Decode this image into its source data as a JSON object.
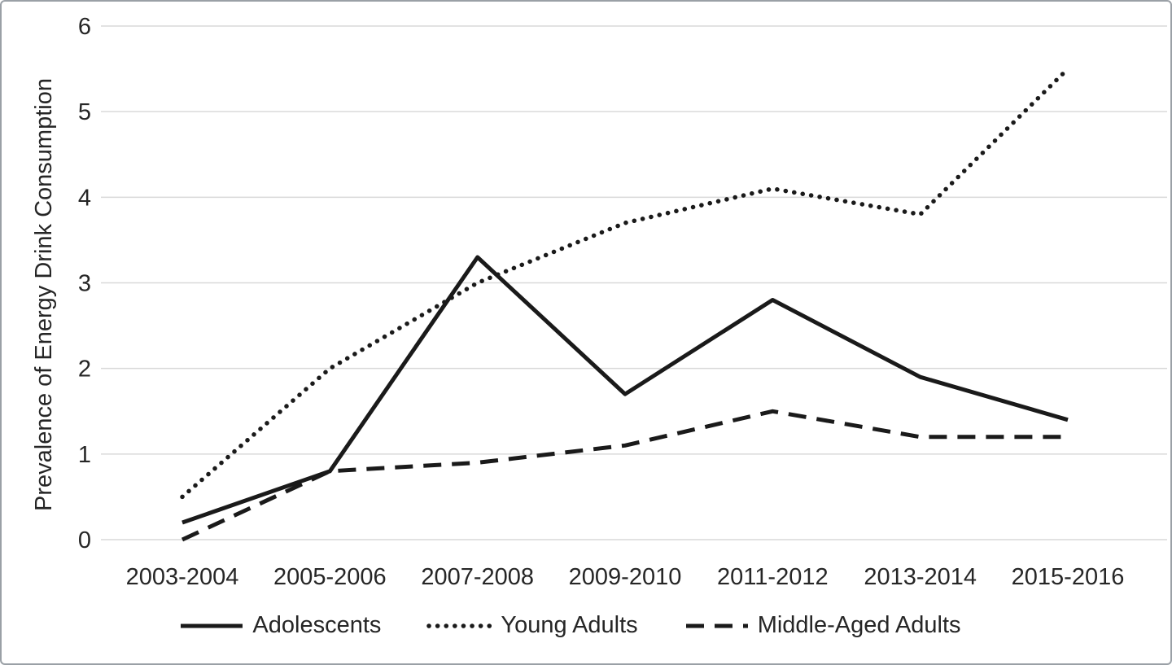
{
  "chart_data": {
    "type": "line",
    "title": "",
    "xlabel": "",
    "ylabel": "Prevalence of Energy Drink Consumption",
    "ylim": [
      0,
      6
    ],
    "yticks": [
      0,
      1,
      2,
      3,
      4,
      5,
      6
    ],
    "grid": "horizontal",
    "legend_position": "bottom",
    "categories": [
      "2003-2004",
      "2005-2006",
      "2007-2008",
      "2009-2010",
      "2011-2012",
      "2013-2014",
      "2015-2016"
    ],
    "series": [
      {
        "name": "Adolescents",
        "style": "solid",
        "values": [
          0.2,
          0.8,
          3.3,
          1.7,
          2.8,
          1.9,
          1.4
        ]
      },
      {
        "name": "Young Adults",
        "style": "dotted",
        "values": [
          0.5,
          2.0,
          3.0,
          3.7,
          4.1,
          3.8,
          5.5
        ]
      },
      {
        "name": "Middle-Aged Adults",
        "style": "dashed",
        "values": [
          0.0,
          0.8,
          0.9,
          1.1,
          1.5,
          1.2,
          1.2
        ]
      }
    ],
    "colors": {
      "line": "#1a1a1a",
      "grid": "#d9d9d9",
      "text": "#262626",
      "background": "#ffffff",
      "border": "#9aa0a6"
    }
  }
}
